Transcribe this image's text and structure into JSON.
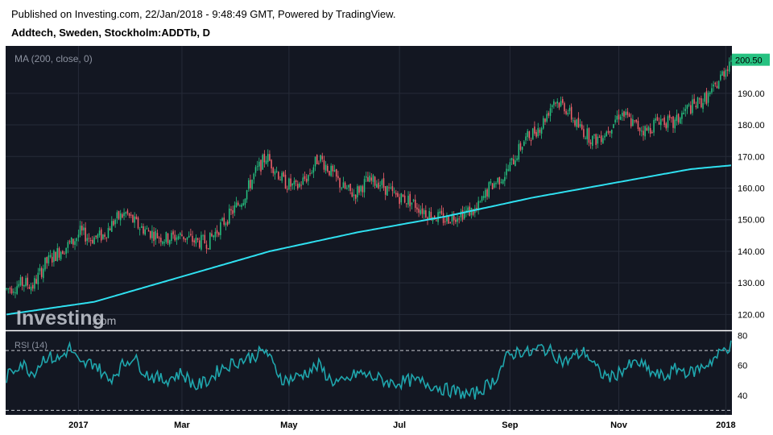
{
  "header": {
    "published": "Published on Investing.com, 22/Jan/2018 - 9:48:49 GMT, Powered by TradingView.",
    "title": "Addtech, Sweden, Stockholm:ADDTb, D"
  },
  "colors": {
    "background": "#131722",
    "grid": "#262b38",
    "up": "#26c281",
    "down": "#f2616b",
    "ma": "#2fe0f0",
    "rsi": "#1fa6ad",
    "axis_text": "#000000",
    "last_price_bg": "#26c281"
  },
  "watermark": {
    "brand": "Investing",
    "suffix": ".com"
  },
  "chart_data": [
    {
      "type": "candlestick",
      "legend": "MA (200, close, 0)",
      "ylim": [
        115,
        205
      ],
      "yticks": [
        120,
        130,
        140,
        150,
        160,
        170,
        180,
        190
      ],
      "last_price": 200.5,
      "last_price_label": "200.50",
      "xticks": [
        "2017",
        "Mar",
        "May",
        "Jul",
        "Sep",
        "Nov",
        "2018"
      ],
      "grid": true,
      "anchors": [
        [
          0,
          128
        ],
        [
          10,
          130
        ],
        [
          15,
          129
        ],
        [
          22,
          136
        ],
        [
          30,
          140
        ],
        [
          38,
          143
        ],
        [
          42,
          146
        ],
        [
          48,
          144
        ],
        [
          55,
          145
        ],
        [
          62,
          150
        ],
        [
          68,
          152
        ],
        [
          75,
          148
        ],
        [
          82,
          146
        ],
        [
          90,
          144
        ],
        [
          100,
          145
        ],
        [
          108,
          143
        ],
        [
          115,
          143
        ],
        [
          122,
          148
        ],
        [
          128,
          152
        ],
        [
          135,
          157
        ],
        [
          142,
          165
        ],
        [
          148,
          170
        ],
        [
          152,
          167
        ],
        [
          158,
          162
        ],
        [
          165,
          160
        ],
        [
          172,
          164
        ],
        [
          178,
          170
        ],
        [
          185,
          165
        ],
        [
          192,
          160
        ],
        [
          198,
          158
        ],
        [
          205,
          162
        ],
        [
          212,
          162
        ],
        [
          220,
          158
        ],
        [
          230,
          156
        ],
        [
          240,
          152
        ],
        [
          250,
          150
        ],
        [
          258,
          152
        ],
        [
          268,
          153
        ],
        [
          275,
          160
        ],
        [
          285,
          165
        ],
        [
          295,
          175
        ],
        [
          305,
          180
        ],
        [
          312,
          188
        ],
        [
          318,
          186
        ],
        [
          325,
          180
        ],
        [
          335,
          175
        ],
        [
          342,
          178
        ],
        [
          350,
          184
        ],
        [
          358,
          180
        ],
        [
          365,
          178
        ],
        [
          372,
          182
        ],
        [
          380,
          180
        ],
        [
          388,
          185
        ],
        [
          395,
          187
        ],
        [
          402,
          190
        ],
        [
          408,
          196
        ],
        [
          413,
          201
        ]
      ],
      "ma_anchors": [
        [
          0,
          120
        ],
        [
          50,
          124
        ],
        [
          100,
          132
        ],
        [
          150,
          140
        ],
        [
          200,
          146
        ],
        [
          250,
          151
        ],
        [
          300,
          157
        ],
        [
          350,
          162
        ],
        [
          390,
          166
        ],
        [
          413,
          167.2
        ]
      ]
    },
    {
      "type": "line",
      "legend": "RSI (14)",
      "ylim": [
        27,
        83
      ],
      "yticks": [
        40,
        60,
        80
      ],
      "bands": [
        70,
        30
      ],
      "anchors": [
        [
          0,
          52
        ],
        [
          8,
          62
        ],
        [
          15,
          55
        ],
        [
          22,
          66
        ],
        [
          30,
          64
        ],
        [
          36,
          72
        ],
        [
          42,
          60
        ],
        [
          50,
          62
        ],
        [
          58,
          50
        ],
        [
          66,
          60
        ],
        [
          72,
          66
        ],
        [
          80,
          54
        ],
        [
          90,
          50
        ],
        [
          100,
          55
        ],
        [
          108,
          46
        ],
        [
          115,
          50
        ],
        [
          122,
          58
        ],
        [
          130,
          62
        ],
        [
          140,
          66
        ],
        [
          148,
          70
        ],
        [
          152,
          60
        ],
        [
          158,
          50
        ],
        [
          165,
          52
        ],
        [
          172,
          56
        ],
        [
          178,
          60
        ],
        [
          185,
          50
        ],
        [
          192,
          48
        ],
        [
          200,
          55
        ],
        [
          210,
          52
        ],
        [
          220,
          48
        ],
        [
          230,
          50
        ],
        [
          240,
          48
        ],
        [
          250,
          44
        ],
        [
          258,
          42
        ],
        [
          265,
          40
        ],
        [
          272,
          45
        ],
        [
          278,
          50
        ],
        [
          285,
          65
        ],
        [
          292,
          70
        ],
        [
          298,
          68
        ],
        [
          305,
          72
        ],
        [
          312,
          68
        ],
        [
          318,
          62
        ],
        [
          325,
          67
        ],
        [
          330,
          69
        ],
        [
          338,
          55
        ],
        [
          345,
          52
        ],
        [
          352,
          58
        ],
        [
          360,
          62
        ],
        [
          368,
          55
        ],
        [
          375,
          52
        ],
        [
          382,
          58
        ],
        [
          390,
          55
        ],
        [
          398,
          60
        ],
        [
          405,
          66
        ],
        [
          410,
          72
        ],
        [
          413,
          73
        ]
      ]
    }
  ]
}
